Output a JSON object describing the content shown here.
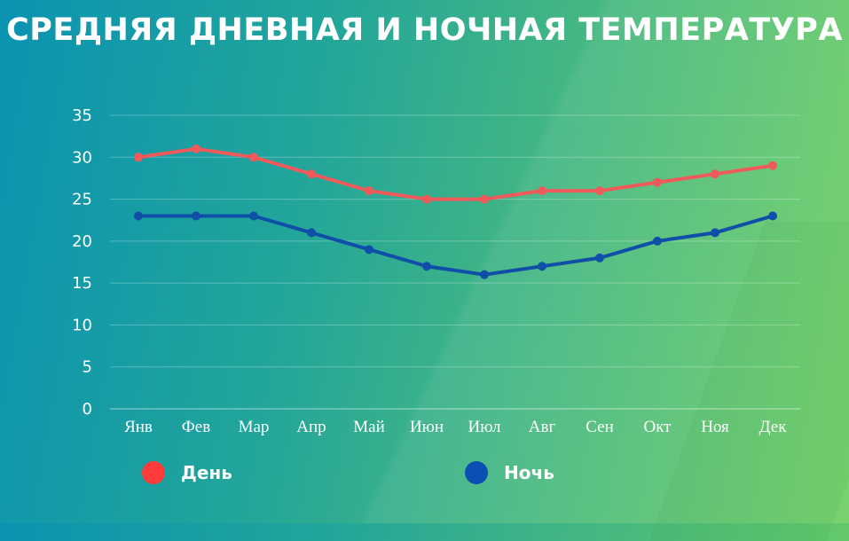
{
  "chart_data": {
    "type": "line",
    "title": "СРЕДНЯЯ ДНЕВНАЯ И НОЧНАЯ ТЕМПЕРАТУРА",
    "categories": [
      "Янв",
      "Фев",
      "Мар",
      "Апр",
      "Май",
      "Июн",
      "Июл",
      "Авг",
      "Сен",
      "Окт",
      "Ноя",
      "Дек"
    ],
    "yticks": [
      "0",
      "5",
      "10",
      "15",
      "20",
      "25",
      "30",
      "35"
    ],
    "ylim": [
      0,
      35
    ],
    "grid": true,
    "legend_position": "bottom",
    "series": [
      {
        "name": "День",
        "color": "#f05a5a",
        "values": [
          30,
          31,
          30,
          28,
          26,
          25,
          25,
          26,
          26,
          27,
          28,
          29
        ]
      },
      {
        "name": "Ночь",
        "color": "#0f4fa8",
        "values": [
          23,
          23,
          23,
          21,
          19,
          17,
          16,
          17,
          18,
          20,
          21,
          23
        ]
      }
    ]
  },
  "legend": [
    {
      "label": "День",
      "color": "#ff3b3b"
    },
    {
      "label": "Ночь",
      "color": "#0b4fb3"
    }
  ]
}
